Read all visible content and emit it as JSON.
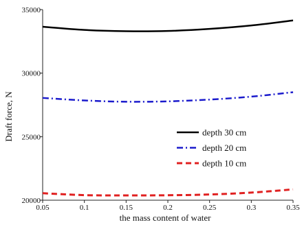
{
  "chart_data": {
    "type": "line",
    "title": "",
    "xlabel": "the mass content of water",
    "ylabel": "Draft force, N",
    "xlim": [
      0.05,
      0.35
    ],
    "ylim": [
      20000,
      35000
    ],
    "x_ticks": [
      "0.05",
      "0.1",
      "0.15",
      "0.2",
      "0.25",
      "0.3",
      "0.35"
    ],
    "y_ticks": [
      "20000",
      "25000",
      "30000",
      "35000"
    ],
    "x_tick_values": [
      0.05,
      0.1,
      0.15,
      0.2,
      0.25,
      0.3,
      0.35
    ],
    "y_tick_values": [
      20000,
      25000,
      30000,
      35000
    ],
    "grid": false,
    "legend_position": "center-right",
    "x": [
      0.05,
      0.1,
      0.15,
      0.2,
      0.25,
      0.3,
      0.35
    ],
    "series": [
      {
        "name": "depth 30 cm",
        "color": "#000000",
        "line_style": "solid",
        "values": [
          33650,
          33400,
          33300,
          33320,
          33480,
          33750,
          34150
        ]
      },
      {
        "name": "depth 20 cm",
        "color": "#1a1acc",
        "line_style": "dash-dot",
        "values": [
          28050,
          27850,
          27750,
          27780,
          27920,
          28150,
          28500
        ]
      },
      {
        "name": "depth 10 cm",
        "color": "#e02020",
        "line_style": "dashed",
        "values": [
          20550,
          20400,
          20380,
          20390,
          20450,
          20600,
          20850
        ]
      }
    ]
  }
}
